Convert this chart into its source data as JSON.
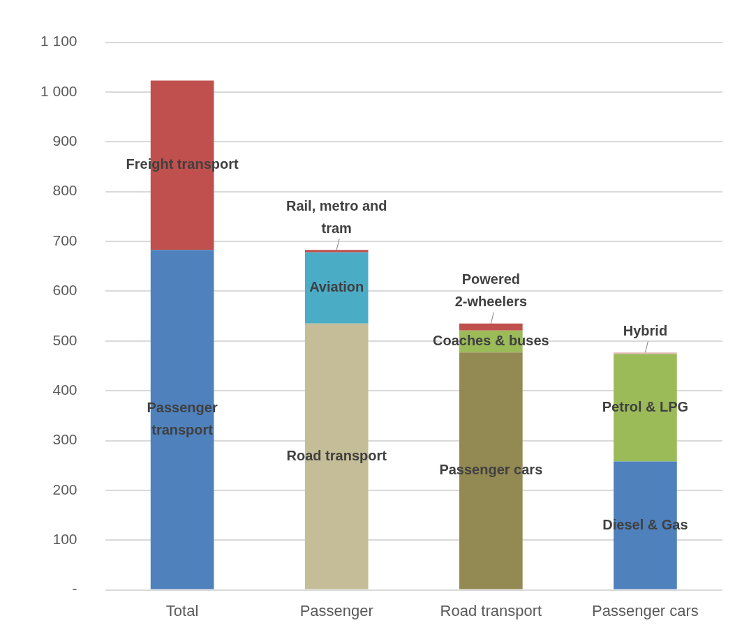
{
  "chart_data": {
    "type": "bar",
    "stacked": true,
    "grid": "y",
    "legend": false,
    "categories": [
      "Total",
      "Passenger",
      "Road transport",
      "Passenger cars"
    ],
    "ylim": [
      0,
      1100
    ],
    "yticks": [
      {
        "value": 0,
        "label": "-"
      },
      100,
      200,
      300,
      400,
      500,
      600,
      700,
      800,
      900,
      {
        "value": 1000,
        "label": "1 000"
      },
      {
        "value": 1100,
        "label": "1 100"
      }
    ],
    "series": [
      {
        "name": "Passenger transport",
        "color": "#4f81bd",
        "values": [
          683,
          null,
          null,
          null
        ]
      },
      {
        "name": "Freight transport",
        "color": "#c0504d",
        "values": [
          340,
          null,
          null,
          null
        ]
      },
      {
        "name": "Road transport",
        "color": "#c4bd97",
        "values": [
          null,
          535,
          null,
          null
        ]
      },
      {
        "name": "Aviation",
        "color": "#4bacc6",
        "values": [
          null,
          143,
          null,
          null
        ]
      },
      {
        "name": "Rail, metro and tram",
        "color": "#c0504d",
        "values": [
          null,
          5,
          null,
          null
        ]
      },
      {
        "name": "Passenger cars",
        "color": "#938953",
        "values": [
          null,
          null,
          477,
          null
        ]
      },
      {
        "name": "Coaches & buses",
        "color": "#9bbb59",
        "values": [
          null,
          null,
          44,
          null
        ]
      },
      {
        "name": "Powered 2-wheelers",
        "color": "#c0504d",
        "values": [
          null,
          null,
          14,
          null
        ]
      },
      {
        "name": "Diesel & Gas",
        "color": "#4f81bd",
        "values": [
          null,
          null,
          null,
          258
        ]
      },
      {
        "name": "Petrol & LPG",
        "color": "#9bbb59",
        "values": [
          null,
          null,
          null,
          216
        ]
      },
      {
        "name": "Hybrid",
        "color": "#e6b9b8",
        "values": [
          null,
          null,
          null,
          3
        ]
      }
    ]
  }
}
